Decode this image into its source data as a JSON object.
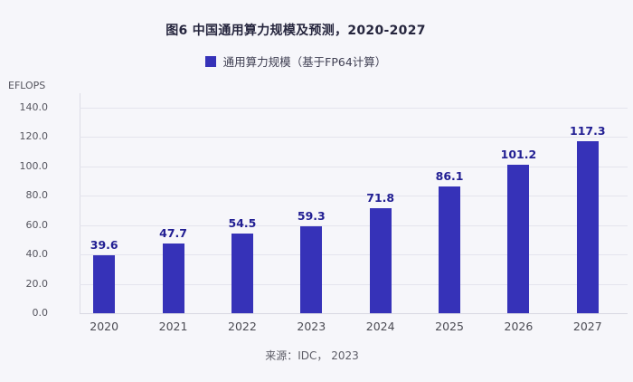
{
  "figure": {
    "title": "图6 中国通用算力规模及预测，2020-2027",
    "legend_label": "通用算力规模（基于FP64计算）",
    "y_unit_label": "EFLOPS",
    "source": "来源：IDC， 2023"
  },
  "colors": {
    "background": "#f6f6fa",
    "bar": "#3632b8",
    "value_label": "#221f93",
    "gridline": "#e4e4ed"
  },
  "chart_data": {
    "type": "bar",
    "title": "图6 中国通用算力规模及预测，2020-2027",
    "series_name": "通用算力规模（基于FP64计算）",
    "categories": [
      "2020",
      "2021",
      "2022",
      "2023",
      "2024",
      "2025",
      "2026",
      "2027"
    ],
    "values": [
      39.6,
      47.7,
      54.5,
      59.3,
      71.8,
      86.1,
      101.2,
      117.3
    ],
    "xlabel": "",
    "ylabel": "EFLOPS",
    "ylim": [
      0,
      140
    ],
    "ytick_step": 20,
    "ytick_decimals": 1,
    "grid": true,
    "legend_position": "top",
    "value_labels": true,
    "source": "来源：IDC， 2023"
  }
}
